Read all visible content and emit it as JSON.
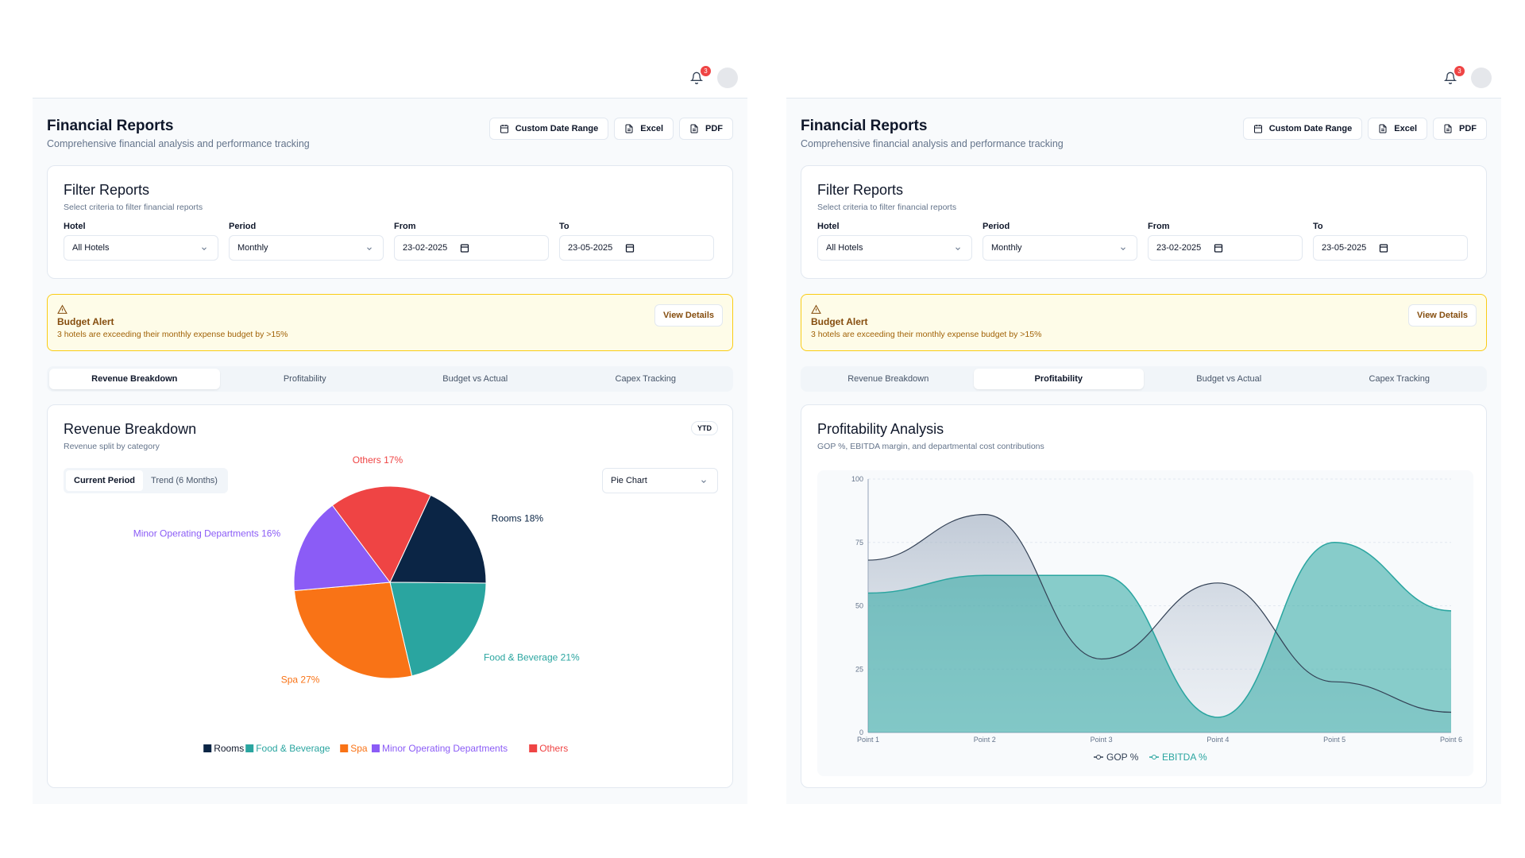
{
  "notifications": {
    "count": "3"
  },
  "header": {
    "title": "Financial Reports",
    "subtitle": "Comprehensive financial analysis and performance tracking",
    "custom_date_range": "Custom Date Range",
    "excel": "Excel",
    "pdf": "PDF"
  },
  "filters": {
    "title": "Filter Reports",
    "subtitle": "Select criteria to filter financial reports",
    "hotel_label": "Hotel",
    "hotel_value": "All Hotels",
    "period_label": "Period",
    "period_value": "Monthly",
    "from_label": "From",
    "from_value": "23-02-2025",
    "to_label": "To",
    "to_value": "23-05-2025"
  },
  "alert": {
    "title": "Budget Alert",
    "text": "3 hotels are exceeding their monthly expense budget by >15%",
    "button": "View Details"
  },
  "tabs": [
    "Revenue Breakdown",
    "Profitability",
    "Budget vs Actual",
    "Capex Tracking"
  ],
  "revenue": {
    "title": "Revenue Breakdown",
    "subtitle": "Revenue split by category",
    "badge": "YTD",
    "seg_current": "Current Period",
    "seg_trend": "Trend (6 Months)",
    "chart_type": "Pie Chart"
  },
  "profitability": {
    "title": "Profitability Analysis",
    "subtitle": "GOP %, EBITDA margin, and departmental cost contributions"
  },
  "colors": {
    "rooms": "#0b2545",
    "food_beverage": "#2aa5a0",
    "spa": "#f97316",
    "minor": "#8b5cf6",
    "others": "#ef4444",
    "gop": "#334155",
    "ebitda": "#2aa5a0",
    "accent": "#0f172a"
  },
  "chart_data": [
    {
      "type": "pie",
      "categories": [
        "Rooms",
        "Food & Beverage",
        "Spa",
        "Minor Operating Departments",
        "Others"
      ],
      "values": [
        18,
        21,
        27,
        16,
        17
      ],
      "labels": [
        "Rooms 18%",
        "Food & Beverage 21%",
        "Spa 27%",
        "Minor Operating Departments 16%",
        "Others 17%"
      ],
      "legend": "bottom"
    },
    {
      "type": "area",
      "x": [
        "Point 1",
        "Point 2",
        "Point 3",
        "Point 4",
        "Point 5",
        "Point 6"
      ],
      "ylim": [
        0,
        100
      ],
      "yticks": [
        0,
        25,
        50,
        75,
        100
      ],
      "series": [
        {
          "name": "GOP %",
          "values": [
            68,
            86,
            29,
            59,
            20,
            8
          ]
        },
        {
          "name": "EBITDA %",
          "values": [
            55,
            62,
            62,
            6,
            75,
            48
          ]
        }
      ],
      "legend": "bottom"
    }
  ]
}
